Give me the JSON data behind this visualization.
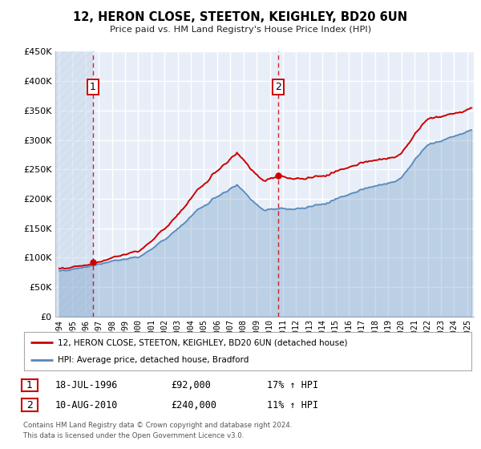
{
  "title": "12, HERON CLOSE, STEETON, KEIGHLEY, BD20 6UN",
  "subtitle": "Price paid vs. HM Land Registry's House Price Index (HPI)",
  "xlim": [
    1993.7,
    2025.5
  ],
  "ylim": [
    0,
    450000
  ],
  "yticks": [
    0,
    50000,
    100000,
    150000,
    200000,
    250000,
    300000,
    350000,
    400000,
    450000
  ],
  "ytick_labels": [
    "£0",
    "£50K",
    "£100K",
    "£150K",
    "£200K",
    "£250K",
    "£300K",
    "£350K",
    "£400K",
    "£450K"
  ],
  "xticks": [
    1994,
    1995,
    1996,
    1997,
    1998,
    1999,
    2000,
    2001,
    2002,
    2003,
    2004,
    2005,
    2006,
    2007,
    2008,
    2009,
    2010,
    2011,
    2012,
    2013,
    2014,
    2015,
    2016,
    2017,
    2018,
    2019,
    2020,
    2021,
    2022,
    2023,
    2024,
    2025
  ],
  "sale1_x": 1996.54,
  "sale1_y": 92000,
  "sale2_x": 2010.61,
  "sale2_y": 240000,
  "vline1_x": 1996.54,
  "vline2_x": 2010.61,
  "legend_line1": "12, HERON CLOSE, STEETON, KEIGHLEY, BD20 6UN (detached house)",
  "legend_line2": "HPI: Average price, detached house, Bradford",
  "table_row1": [
    "1",
    "18-JUL-1996",
    "£92,000",
    "17% ↑ HPI"
  ],
  "table_row2": [
    "2",
    "10-AUG-2010",
    "£240,000",
    "11% ↑ HPI"
  ],
  "footer1": "Contains HM Land Registry data © Crown copyright and database right 2024.",
  "footer2": "This data is licensed under the Open Government Licence v3.0.",
  "red_color": "#cc0000",
  "blue_color": "#5588bb",
  "hatch_color": "#c8d8ec",
  "plot_bg": "#e8eef8",
  "label_box_color": "#cc0000"
}
